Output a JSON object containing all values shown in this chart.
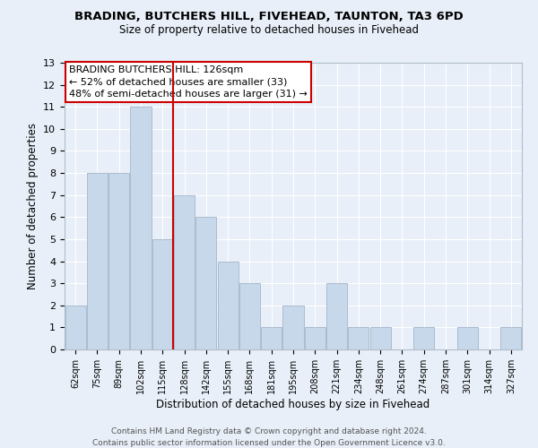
{
  "title1": "BRADING, BUTCHERS HILL, FIVEHEAD, TAUNTON, TA3 6PD",
  "title2": "Size of property relative to detached houses in Fivehead",
  "xlabel": "Distribution of detached houses by size in Fivehead",
  "ylabel": "Number of detached properties",
  "bar_color": "#c8d8eb",
  "bar_edge_color": "#aabcce",
  "background_color": "#e8eff8",
  "grid_color": "#ffffff",
  "categories": [
    "62sqm",
    "75sqm",
    "89sqm",
    "102sqm",
    "115sqm",
    "128sqm",
    "142sqm",
    "155sqm",
    "168sqm",
    "181sqm",
    "195sqm",
    "208sqm",
    "221sqm",
    "234sqm",
    "248sqm",
    "261sqm",
    "274sqm",
    "287sqm",
    "301sqm",
    "314sqm",
    "327sqm"
  ],
  "values": [
    2,
    8,
    8,
    11,
    5,
    7,
    6,
    4,
    3,
    1,
    2,
    1,
    3,
    1,
    1,
    0,
    1,
    0,
    1,
    0,
    1
  ],
  "ylim": [
    0,
    13
  ],
  "yticks": [
    0,
    1,
    2,
    3,
    4,
    5,
    6,
    7,
    8,
    9,
    10,
    11,
    12,
    13
  ],
  "property_line_color": "#cc0000",
  "annotation_line1": "BRADING BUTCHERS HILL: 126sqm",
  "annotation_line2": "← 52% of detached houses are smaller (33)",
  "annotation_line3": "48% of semi-detached houses are larger (31) →",
  "annotation_box_color": "#ffffff",
  "annotation_box_edge": "#cc0000",
  "footer1": "Contains HM Land Registry data © Crown copyright and database right 2024.",
  "footer2": "Contains public sector information licensed under the Open Government Licence v3.0."
}
